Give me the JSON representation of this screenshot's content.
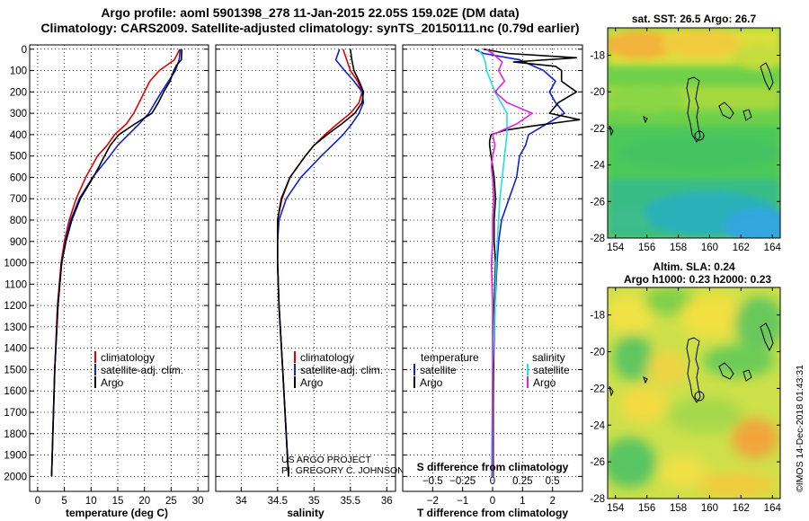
{
  "title": {
    "line1": "Argo profile: aoml 5901398_278 11-Jan-2015 22.05S 159.02E (DM data)",
    "line2": "Climatology: CARS2009. Satellite-adjusted climatology: synTS_20150111.nc (0.79d earlier)"
  },
  "colors": {
    "climatology": "#e00000",
    "satellite": "#1020d0",
    "argo": "#000000",
    "satellite_s": "#20e0e0",
    "argo_s": "#e020e0"
  },
  "chart_data": [
    {
      "type": "line",
      "id": "temperature",
      "xlabel": "temperature (deg C)",
      "ylabel": "depth",
      "xlim": [
        -1.5,
        32
      ],
      "ylim": [
        2070,
        -20
      ],
      "xticks": [
        0,
        5,
        10,
        15,
        20,
        25,
        30
      ],
      "yticks": [
        0,
        100,
        200,
        300,
        400,
        500,
        600,
        700,
        800,
        900,
        1000,
        1100,
        1200,
        1300,
        1400,
        1500,
        1600,
        1700,
        1800,
        1900,
        2000
      ],
      "series": [
        {
          "name": "climatology",
          "color": "#e00000",
          "depth": [
            0,
            50,
            100,
            150,
            200,
            250,
            300,
            350,
            400,
            450,
            500,
            600,
            700,
            800,
            900,
            1000,
            1200,
            1500,
            2000
          ],
          "values": [
            26.6,
            25.6,
            22.8,
            21.0,
            20.0,
            19.0,
            18.0,
            16.6,
            14.4,
            13.0,
            11.2,
            9.0,
            7.2,
            5.9,
            5.0,
            4.4,
            3.7,
            3.2,
            2.6
          ]
        },
        {
          "name": "satellite-adj. clim.",
          "color": "#1020d0",
          "depth": [
            0,
            50,
            100,
            150,
            200,
            250,
            300,
            350,
            400,
            450,
            500,
            600,
            700,
            800,
            900,
            1000,
            1200,
            1500,
            2000
          ],
          "values": [
            26.7,
            26.5,
            25.8,
            24.5,
            23.2,
            22.0,
            20.8,
            19.0,
            17.0,
            15.0,
            13.5,
            10.3,
            7.8,
            6.2,
            5.2,
            4.5,
            3.8,
            3.2,
            2.6
          ]
        },
        {
          "name": "Argo",
          "color": "#000000",
          "depth": [
            0,
            50,
            75,
            100,
            150,
            200,
            250,
            300,
            350,
            400,
            450,
            500,
            550,
            600,
            700,
            800,
            900,
            1000,
            1200,
            1500,
            2000
          ],
          "values": [
            27.0,
            26.9,
            26.0,
            25.5,
            24.8,
            23.6,
            22.6,
            21.4,
            18.2,
            15.2,
            13.6,
            12.5,
            11.5,
            10.4,
            8.0,
            6.4,
            5.3,
            4.5,
            3.8,
            3.2,
            2.6
          ]
        }
      ],
      "legend": [
        "climatology",
        "satellite-adj. clim.",
        "Argo"
      ]
    },
    {
      "type": "line",
      "id": "salinity",
      "xlabel": "salinity",
      "ylabel": "depth",
      "xlim": [
        33.65,
        36.12
      ],
      "ylim": [
        2070,
        -20
      ],
      "xticks": [
        34,
        34.5,
        35,
        35.5,
        36
      ],
      "series": [
        {
          "name": "climatology",
          "color": "#e00000",
          "depth": [
            0,
            50,
            100,
            150,
            200,
            250,
            300,
            350,
            400,
            450,
            500,
            600,
            700,
            800,
            900,
            1000,
            1200,
            1500,
            2000
          ],
          "values": [
            35.4,
            35.45,
            35.5,
            35.6,
            35.66,
            35.62,
            35.5,
            35.32,
            35.15,
            35.0,
            34.88,
            34.67,
            34.56,
            34.5,
            34.5,
            34.5,
            34.52,
            34.57,
            34.65
          ]
        },
        {
          "name": "satellite-adj. clim.",
          "color": "#1020d0",
          "depth": [
            0,
            50,
            100,
            150,
            200,
            250,
            300,
            350,
            400,
            450,
            500,
            600,
            700,
            800,
            900,
            1000,
            1200,
            1500,
            2000
          ],
          "values": [
            35.35,
            35.3,
            35.42,
            35.55,
            35.66,
            35.68,
            35.62,
            35.52,
            35.4,
            35.25,
            35.1,
            34.82,
            34.62,
            34.52,
            34.5,
            34.5,
            34.52,
            34.57,
            34.65
          ]
        },
        {
          "name": "Argo",
          "color": "#000000",
          "depth": [
            0,
            50,
            100,
            150,
            200,
            250,
            300,
            350,
            400,
            450,
            500,
            600,
            700,
            800,
            900,
            1000,
            1200,
            1500,
            2000
          ],
          "values": [
            35.5,
            35.52,
            35.55,
            35.62,
            35.68,
            35.66,
            35.56,
            35.38,
            35.18,
            35.0,
            34.88,
            34.67,
            34.55,
            34.5,
            34.5,
            34.5,
            34.52,
            34.57,
            34.65
          ]
        }
      ],
      "legend": [
        "climatology",
        "satellite-adj. clim.",
        "Argo"
      ],
      "credit_lines": [
        "US ARGO PROJECT",
        "PI: GREGORY C. JOHNSON"
      ]
    },
    {
      "type": "line",
      "id": "difference",
      "xlabel": "T difference from climatology",
      "xlabel2": "S difference from climatology",
      "xlim": [
        -3.0,
        3.0
      ],
      "ylim": [
        2070,
        -20
      ],
      "xticks": [
        -2,
        -1,
        0,
        1,
        2
      ],
      "xticklabels": [
        "−2",
        "−1",
        "0",
        "1",
        "2"
      ],
      "sticks": [
        -0.5,
        -0.25,
        0,
        0.25,
        0.5
      ],
      "sticklabels": [
        "−0.5",
        "−0.25",
        "0",
        "0.25",
        "0.5"
      ],
      "sscale": 4,
      "series": [
        {
          "name": "T satellite",
          "kind": "T",
          "color": "#1020d0",
          "depth": [
            0,
            20,
            50,
            100,
            150,
            200,
            250,
            300,
            350,
            400,
            450,
            500,
            600,
            700,
            800,
            900,
            1000,
            1200,
            1500,
            2000
          ],
          "values": [
            -0.6,
            -0.3,
            0.9,
            1.7,
            2.1,
            1.9,
            2.1,
            2.4,
            1.8,
            1.2,
            1.1,
            0.9,
            0.8,
            0.55,
            0.3,
            0.2,
            0.15,
            0.08,
            0.03,
            0.0
          ]
        },
        {
          "name": "T Argo",
          "kind": "T",
          "color": "#000000",
          "depth": [
            0,
            20,
            40,
            60,
            80,
            100,
            150,
            200,
            250,
            300,
            330,
            360,
            380,
            400,
            430,
            450,
            500,
            600,
            700,
            800,
            900,
            1000,
            1200,
            1500,
            2000
          ],
          "values": [
            -0.3,
            0.5,
            2.8,
            0.7,
            2.1,
            2.3,
            2.3,
            2.8,
            2.2,
            1.9,
            2.9,
            1.3,
            0.4,
            -0.05,
            -0.1,
            -0.1,
            -0.05,
            0.05,
            0.1,
            0.05,
            0.05,
            0.1,
            0.05,
            0.02,
            0.02
          ]
        },
        {
          "name": "S satellite",
          "kind": "S",
          "color": "#20e0e0",
          "depth": [
            0,
            30,
            60,
            100,
            200,
            300,
            400,
            500,
            600,
            700,
            800,
            900,
            1000,
            1200,
            1500,
            2000
          ],
          "values": [
            -0.12,
            -0.08,
            -0.06,
            -0.05,
            0.02,
            0.12,
            0.12,
            0.1,
            0.08,
            0.06,
            0.05,
            0.04,
            0.03,
            0.02,
            0.0,
            -0.01
          ]
        },
        {
          "name": "S Argo",
          "kind": "S",
          "color": "#e020e0",
          "depth": [
            0,
            30,
            60,
            100,
            150,
            200,
            250,
            300,
            350,
            400,
            450,
            500,
            550,
            600,
            700,
            800,
            900,
            1000,
            1200,
            1500,
            2000
          ],
          "values": [
            -0.05,
            0.02,
            0.08,
            0.05,
            0.1,
            0.02,
            0.12,
            0.33,
            0.2,
            0.0,
            0.02,
            0.0,
            -0.01,
            0.0,
            0.01,
            0.0,
            0.0,
            -0.01,
            0.0,
            0.0,
            0.0
          ]
        }
      ],
      "legend_t": {
        "title": "temperature",
        "items": [
          "satellite",
          "Argo"
        ]
      },
      "legend_s": {
        "title": "salinity",
        "items": [
          "satellite",
          "Argo"
        ]
      }
    },
    {
      "type": "heatmap",
      "id": "sst_map",
      "title": "sat. SST: 26.5 Argo: 26.7",
      "xlim": [
        153.5,
        164.5
      ],
      "ylim": [
        -28,
        -16.5
      ],
      "xticks": [
        154,
        156,
        158,
        160,
        162,
        164
      ],
      "yticks": [
        -18,
        -20,
        -22,
        -24,
        -26,
        -28
      ],
      "marker": {
        "lon": 159.02,
        "lat": -22.05
      }
    },
    {
      "type": "heatmap",
      "id": "sla_map",
      "title1": "Altim. SLA: 0.24",
      "title2": "Argo h1000: 0.23 h2000: 0.23",
      "xlim": [
        153.5,
        164.5
      ],
      "ylim": [
        -28,
        -16.5
      ],
      "xticks": [
        154,
        156,
        158,
        160,
        162,
        164
      ],
      "yticks": [
        -18,
        -20,
        -22,
        -24,
        -26,
        -28
      ],
      "marker": {
        "lon": 159.02,
        "lat": -22.05
      }
    }
  ],
  "watermark": "©IMOS 14-Dec-2018 01:43:31"
}
